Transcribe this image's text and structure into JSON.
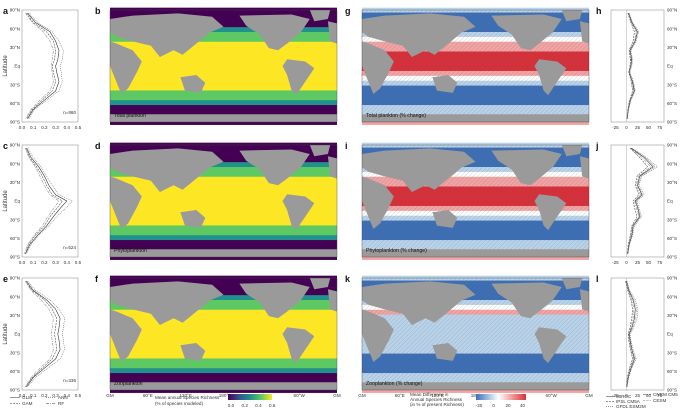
{
  "panels": {
    "a": "a",
    "b": "b",
    "c": "c",
    "d": "d",
    "e": "e",
    "f": "f",
    "g": "g",
    "h": "h",
    "i": "i",
    "j": "j",
    "k": "k",
    "l": "l"
  },
  "lat_ticks": [
    "90°N",
    "60°N",
    "30°N",
    "Eq",
    "30°S",
    "60°S",
    "90°S"
  ],
  "lat_label": "Latitude",
  "lon_ticks": [
    "GM",
    "60°E",
    "120°E",
    "180°",
    "120°W",
    "60°W",
    "GM"
  ],
  "left_x_ticks": [
    "0.0",
    "0.1",
    "0.2",
    "0.3",
    "0.4",
    "0.5"
  ],
  "right_x_ticks": [
    "-25",
    "0",
    "25",
    "50",
    "75"
  ],
  "rows": [
    {
      "n": "n=860",
      "map_label": "Total plankton",
      "change_label": "Total plankton (% change)"
    },
    {
      "n": "n=524",
      "map_label": "Phytoplankton",
      "change_label": "Phytoplankton (% change)"
    },
    {
      "n": "n=336",
      "map_label": "Zooplankton",
      "change_label": "Zooplankton (% change)"
    }
  ],
  "legend_models_left": [
    "GLM",
    "GAM",
    "ANN",
    "RF"
  ],
  "legend_models_right": [
    "MIROC",
    "IPSL CM5A",
    "GFDL ESM2M",
    "CNRM CM5",
    "CESM"
  ],
  "colorbar_richness": {
    "title_line1": "Mean annual Species Richness",
    "title_line2": "(% of species modeled)",
    "ticks": [
      "0.0",
      "0.2",
      "0.4",
      "0.6"
    ]
  },
  "colorbar_change": {
    "title_line1": "Mean Difference in",
    "title_line2": "Annual Species Richness",
    "title_line3": "(in % of present Richness)",
    "ticks": [
      "-20",
      "0",
      "20",
      "40"
    ]
  },
  "colors": {
    "viridis": [
      "#440154",
      "#3b528b",
      "#21918c",
      "#5ec962",
      "#fde725"
    ],
    "diverging": [
      "#3d6fb6",
      "#b9d3ea",
      "#ffffff",
      "#f2a3a3",
      "#d7303a"
    ],
    "land": "#9a9a9a"
  },
  "chart_data": [
    {
      "type": "line",
      "panel": "a",
      "title": "",
      "xlabel": "",
      "ylabel": "Latitude",
      "xlim": [
        0,
        0.5
      ],
      "ylim": [
        -90,
        90
      ],
      "annotation": "n=860",
      "series": [
        {
          "name": "GLM",
          "x": [
            0.05,
            0.12,
            0.25,
            0.3,
            0.33,
            0.32,
            0.3,
            0.31,
            0.33,
            0.3,
            0.2,
            0.1,
            0.05
          ],
          "y": [
            85,
            70,
            55,
            40,
            25,
            10,
            0,
            -10,
            -25,
            -40,
            -55,
            -70,
            -85
          ]
        },
        {
          "name": "GAM",
          "x": [
            0.04,
            0.1,
            0.22,
            0.28,
            0.3,
            0.29,
            0.27,
            0.28,
            0.3,
            0.27,
            0.18,
            0.09,
            0.04
          ],
          "y": [
            85,
            70,
            55,
            40,
            25,
            10,
            0,
            -10,
            -25,
            -40,
            -55,
            -70,
            -85
          ]
        },
        {
          "name": "ANN",
          "x": [
            0.06,
            0.14,
            0.27,
            0.33,
            0.37,
            0.36,
            0.34,
            0.35,
            0.36,
            0.33,
            0.22,
            0.11,
            0.06
          ],
          "y": [
            85,
            70,
            55,
            40,
            25,
            10,
            0,
            -10,
            -25,
            -40,
            -55,
            -70,
            -85
          ]
        },
        {
          "name": "RF",
          "x": [
            0.03,
            0.09,
            0.19,
            0.25,
            0.28,
            0.27,
            0.26,
            0.27,
            0.28,
            0.25,
            0.16,
            0.08,
            0.03
          ],
          "y": [
            85,
            70,
            55,
            40,
            25,
            10,
            0,
            -10,
            -25,
            -40,
            -55,
            -70,
            -85
          ]
        }
      ]
    },
    {
      "type": "line",
      "panel": "c",
      "title": "",
      "xlabel": "",
      "ylabel": "Latitude",
      "xlim": [
        0,
        0.5
      ],
      "ylim": [
        -90,
        90
      ],
      "annotation": "n=524",
      "series": [
        {
          "name": "GLM",
          "x": [
            0.04,
            0.08,
            0.15,
            0.2,
            0.24,
            0.3,
            0.4,
            0.35,
            0.28,
            0.22,
            0.14,
            0.07,
            0.03
          ],
          "y": [
            85,
            70,
            55,
            40,
            25,
            10,
            0,
            -10,
            -25,
            -40,
            -55,
            -70,
            -85
          ]
        },
        {
          "name": "GAM",
          "x": [
            0.03,
            0.07,
            0.13,
            0.18,
            0.22,
            0.27,
            0.36,
            0.32,
            0.25,
            0.2,
            0.12,
            0.06,
            0.03
          ],
          "y": [
            85,
            70,
            55,
            40,
            25,
            10,
            0,
            -10,
            -25,
            -40,
            -55,
            -70,
            -85
          ]
        },
        {
          "name": "ANN",
          "x": [
            0.05,
            0.1,
            0.17,
            0.22,
            0.27,
            0.33,
            0.45,
            0.4,
            0.31,
            0.24,
            0.15,
            0.08,
            0.04
          ],
          "y": [
            85,
            70,
            55,
            40,
            25,
            10,
            0,
            -10,
            -25,
            -40,
            -55,
            -70,
            -85
          ]
        },
        {
          "name": "RF",
          "x": [
            0.03,
            0.06,
            0.12,
            0.16,
            0.2,
            0.25,
            0.33,
            0.29,
            0.23,
            0.18,
            0.11,
            0.05,
            0.02
          ],
          "y": [
            85,
            70,
            55,
            40,
            25,
            10,
            0,
            -10,
            -25,
            -40,
            -55,
            -70,
            -85
          ]
        }
      ]
    },
    {
      "type": "line",
      "panel": "e",
      "title": "",
      "xlabel": "",
      "ylabel": "Latitude",
      "xlim": [
        0,
        0.5
      ],
      "ylim": [
        -90,
        90
      ],
      "annotation": "n=336",
      "series": [
        {
          "name": "GLM",
          "x": [
            0.04,
            0.1,
            0.22,
            0.3,
            0.34,
            0.33,
            0.32,
            0.33,
            0.34,
            0.3,
            0.2,
            0.1,
            0.04
          ],
          "y": [
            85,
            70,
            55,
            40,
            25,
            10,
            0,
            -10,
            -25,
            -40,
            -55,
            -70,
            -85
          ]
        },
        {
          "name": "GAM",
          "x": [
            0.03,
            0.09,
            0.2,
            0.27,
            0.31,
            0.3,
            0.29,
            0.3,
            0.31,
            0.27,
            0.18,
            0.09,
            0.03
          ],
          "y": [
            85,
            70,
            55,
            40,
            25,
            10,
            0,
            -10,
            -25,
            -40,
            -55,
            -70,
            -85
          ]
        },
        {
          "name": "ANN",
          "x": [
            0.05,
            0.12,
            0.25,
            0.33,
            0.38,
            0.37,
            0.36,
            0.37,
            0.38,
            0.34,
            0.23,
            0.12,
            0.05
          ],
          "y": [
            85,
            70,
            55,
            40,
            25,
            10,
            0,
            -10,
            -25,
            -40,
            -55,
            -70,
            -85
          ]
        },
        {
          "name": "RF",
          "x": [
            0.03,
            0.08,
            0.17,
            0.24,
            0.28,
            0.27,
            0.26,
            0.27,
            0.28,
            0.25,
            0.16,
            0.08,
            0.03
          ],
          "y": [
            85,
            70,
            55,
            40,
            25,
            10,
            0,
            -10,
            -25,
            -40,
            -55,
            -70,
            -85
          ]
        }
      ]
    },
    {
      "type": "line",
      "panel": "h",
      "title": "",
      "xlabel": "",
      "ylabel": "",
      "xlim": [
        -35,
        85
      ],
      "ylim": [
        -90,
        90
      ],
      "series": [
        {
          "name": "MIROC",
          "x": [
            5,
            12,
            25,
            20,
            8,
            12,
            10,
            6,
            14,
            18,
            9,
            4,
            2
          ],
          "y": [
            85,
            70,
            55,
            40,
            25,
            10,
            0,
            -10,
            -25,
            -40,
            -55,
            -70,
            -85
          ]
        },
        {
          "name": "IPSL CM5A",
          "x": [
            3,
            10,
            18,
            15,
            6,
            9,
            8,
            5,
            11,
            14,
            7,
            3,
            1
          ],
          "y": [
            85,
            70,
            55,
            40,
            25,
            10,
            0,
            -10,
            -25,
            -40,
            -55,
            -70,
            -85
          ]
        },
        {
          "name": "GFDL ESM2M",
          "x": [
            6,
            14,
            28,
            22,
            10,
            14,
            12,
            8,
            16,
            20,
            10,
            5,
            2
          ],
          "y": [
            85,
            70,
            55,
            40,
            25,
            10,
            0,
            -10,
            -25,
            -40,
            -55,
            -70,
            -85
          ]
        },
        {
          "name": "CNRM CM5",
          "x": [
            4,
            11,
            22,
            18,
            7,
            10,
            9,
            7,
            12,
            16,
            8,
            4,
            1
          ],
          "y": [
            85,
            70,
            55,
            40,
            25,
            10,
            0,
            -10,
            -25,
            -40,
            -55,
            -70,
            -85
          ]
        },
        {
          "name": "CESM",
          "x": [
            5,
            13,
            24,
            19,
            9,
            11,
            10,
            6,
            13,
            17,
            9,
            4,
            2
          ],
          "y": [
            85,
            70,
            55,
            40,
            25,
            10,
            0,
            -10,
            -25,
            -40,
            -55,
            -70,
            -85
          ]
        }
      ]
    },
    {
      "type": "line",
      "panel": "j",
      "title": "",
      "xlabel": "",
      "ylabel": "",
      "xlim": [
        -35,
        85
      ],
      "ylim": [
        -90,
        90
      ],
      "series": [
        {
          "name": "MIROC",
          "x": [
            10,
            40,
            60,
            30,
            25,
            35,
            20,
            25,
            30,
            15,
            12,
            6,
            3
          ],
          "y": [
            85,
            70,
            55,
            40,
            25,
            10,
            0,
            -10,
            -25,
            -40,
            -55,
            -70,
            -85
          ]
        },
        {
          "name": "IPSL CM5A",
          "x": [
            8,
            30,
            48,
            24,
            20,
            28,
            15,
            18,
            24,
            12,
            9,
            4,
            2
          ],
          "y": [
            85,
            70,
            55,
            40,
            25,
            10,
            0,
            -10,
            -25,
            -40,
            -55,
            -70,
            -85
          ]
        },
        {
          "name": "GFDL ESM2M",
          "x": [
            12,
            45,
            70,
            35,
            28,
            40,
            24,
            28,
            34,
            18,
            14,
            7,
            3
          ],
          "y": [
            85,
            70,
            55,
            40,
            25,
            10,
            0,
            -10,
            -25,
            -40,
            -55,
            -70,
            -85
          ]
        },
        {
          "name": "CNRM CM5",
          "x": [
            9,
            35,
            55,
            28,
            22,
            32,
            18,
            22,
            28,
            14,
            10,
            5,
            2
          ],
          "y": [
            85,
            70,
            55,
            40,
            25,
            10,
            0,
            -10,
            -25,
            -40,
            -55,
            -70,
            -85
          ]
        },
        {
          "name": "CESM",
          "x": [
            11,
            42,
            65,
            33,
            26,
            37,
            22,
            26,
            32,
            16,
            13,
            6,
            3
          ],
          "y": [
            85,
            70,
            55,
            40,
            25,
            10,
            0,
            -10,
            -25,
            -40,
            -55,
            -70,
            -85
          ]
        }
      ]
    },
    {
      "type": "line",
      "panel": "l",
      "title": "",
      "xlabel": "",
      "ylabel": "",
      "xlim": [
        -35,
        85
      ],
      "ylim": [
        -90,
        90
      ],
      "series": [
        {
          "name": "MIROC",
          "x": [
            0,
            5,
            15,
            20,
            18,
            12,
            6,
            8,
            12,
            18,
            10,
            4,
            1
          ],
          "y": [
            85,
            70,
            55,
            40,
            25,
            10,
            0,
            -10,
            -25,
            -40,
            -55,
            -70,
            -85
          ]
        },
        {
          "name": "IPSL CM5A",
          "x": [
            -2,
            3,
            10,
            14,
            12,
            8,
            4,
            5,
            9,
            14,
            7,
            2,
            0
          ],
          "y": [
            85,
            70,
            55,
            40,
            25,
            10,
            0,
            -10,
            -25,
            -40,
            -55,
            -70,
            -85
          ]
        },
        {
          "name": "GFDL ESM2M",
          "x": [
            1,
            7,
            20,
            26,
            24,
            16,
            8,
            10,
            15,
            22,
            12,
            5,
            1
          ],
          "y": [
            85,
            70,
            55,
            40,
            25,
            10,
            0,
            -10,
            -25,
            -40,
            -55,
            -70,
            -85
          ]
        },
        {
          "name": "CNRM CM5",
          "x": [
            -1,
            4,
            12,
            17,
            15,
            10,
            5,
            7,
            10,
            16,
            8,
            3,
            0
          ],
          "y": [
            85,
            70,
            55,
            40,
            25,
            10,
            0,
            -10,
            -25,
            -40,
            -55,
            -70,
            -85
          ]
        },
        {
          "name": "CESM",
          "x": [
            0,
            6,
            17,
            23,
            21,
            14,
            7,
            9,
            13,
            20,
            11,
            4,
            1
          ],
          "y": [
            85,
            70,
            55,
            40,
            25,
            10,
            0,
            -10,
            -25,
            -40,
            -55,
            -70,
            -85
          ]
        }
      ]
    },
    {
      "type": "heatmap",
      "panel": "b",
      "map_label": "Total plankton",
      "colorbar": "richness",
      "xlim_ticks": [
        "GM",
        "60°E",
        "120°E",
        "180°",
        "120°W",
        "60°W",
        "GM"
      ],
      "ylim": [
        -90,
        90
      ]
    },
    {
      "type": "heatmap",
      "panel": "d",
      "map_label": "Phytoplankton",
      "colorbar": "richness",
      "ylim": [
        -90,
        90
      ]
    },
    {
      "type": "heatmap",
      "panel": "f",
      "map_label": "Zooplankton",
      "colorbar": "richness",
      "ylim": [
        -90,
        90
      ]
    },
    {
      "type": "heatmap",
      "panel": "g",
      "map_label": "Total plankton (% change)",
      "colorbar": "change",
      "ylim": [
        -90,
        90
      ]
    },
    {
      "type": "heatmap",
      "panel": "i",
      "map_label": "Phytoplankton (% change)",
      "colorbar": "change",
      "ylim": [
        -90,
        90
      ]
    },
    {
      "type": "heatmap",
      "panel": "k",
      "map_label": "Zooplankton (% change)",
      "colorbar": "change",
      "ylim": [
        -90,
        90
      ]
    }
  ]
}
